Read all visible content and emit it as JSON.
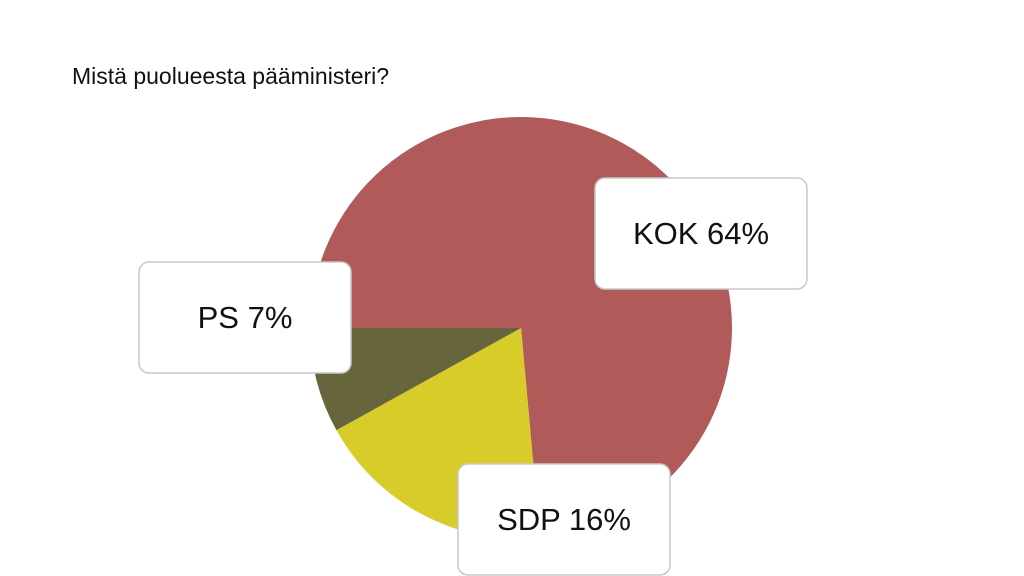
{
  "chart_data": {
    "type": "pie",
    "title": "Mistä puolueesta pääministeri?",
    "categories": [
      "KOK",
      "SDP",
      "PS"
    ],
    "values": [
      64,
      16,
      7
    ],
    "value_labels": [
      "KOK 64%",
      "SDP 16%",
      "PS 7%"
    ],
    "colors": [
      "#b05a5a",
      "#d8cc2a",
      "#66653c"
    ]
  }
}
